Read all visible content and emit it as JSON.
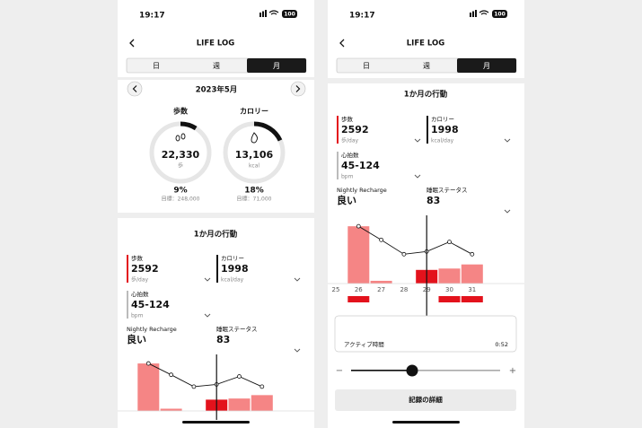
{
  "screens": [
    {
      "status": {
        "time": "19:17",
        "battery": "100"
      },
      "header": {
        "title": "LIFE LOG"
      },
      "tabs": [
        "日",
        "週",
        "月"
      ],
      "month_nav": {
        "label": "2023年5月"
      },
      "rings": [
        {
          "title": "歩数",
          "value": "22,330",
          "unit": "歩",
          "percent": {
            "value": 9,
            "label": "9%"
          },
          "goal": "目標：248,000"
        },
        {
          "title": "カロリー",
          "value": "13,106",
          "unit": "kcal",
          "percent": {
            "value": 18,
            "label": "18%"
          },
          "goal": "目標：71,000"
        }
      ],
      "section_title": "1か月の行動",
      "metrics": [
        {
          "label": "歩数",
          "value": "2592",
          "unit": "歩/day"
        },
        {
          "label": "カロリー",
          "value": "1998",
          "unit": "kcal/day"
        },
        {
          "label": "心拍数",
          "value": "45-124",
          "unit": "bpm"
        },
        {
          "label": "Nightly Recharge",
          "value": "良い"
        },
        {
          "label": "睡眠ステータス",
          "value": "83"
        }
      ]
    },
    {
      "status": {
        "time": "19:17",
        "battery": "100"
      },
      "header": {
        "title": "LIFE LOG"
      },
      "tabs": [
        "日",
        "週",
        "月"
      ],
      "section_title": "1か月の行動",
      "metrics": [
        {
          "label": "歩数",
          "value": "2592",
          "unit": "歩/day"
        },
        {
          "label": "カロリー",
          "value": "1998",
          "unit": "kcal/day"
        },
        {
          "label": "心拍数",
          "value": "45-124",
          "unit": "bpm"
        },
        {
          "label": "Nightly Recharge",
          "value": "良い"
        },
        {
          "label": "睡眠ステータス",
          "value": "83"
        }
      ],
      "active_time": {
        "label": "アクティブ時間",
        "value": "0:52"
      },
      "slider": {
        "minus": "−",
        "plus": "+"
      },
      "button": "記録の詳細"
    }
  ],
  "activity_chart": {
    "days": [
      "25",
      "26",
      "27",
      "28",
      "29",
      "30",
      "31"
    ],
    "ylim": [
      0,
      100
    ],
    "steps": [
      0,
      84,
      4,
      0,
      20,
      22,
      28
    ],
    "calories": [
      null,
      84,
      64,
      43,
      47,
      61,
      43
    ],
    "goal_met": [
      false,
      true,
      false,
      false,
      false,
      true,
      true
    ],
    "bar_color": "#f58585",
    "selected_color": "#e3121c",
    "line_color": "#111111"
  }
}
